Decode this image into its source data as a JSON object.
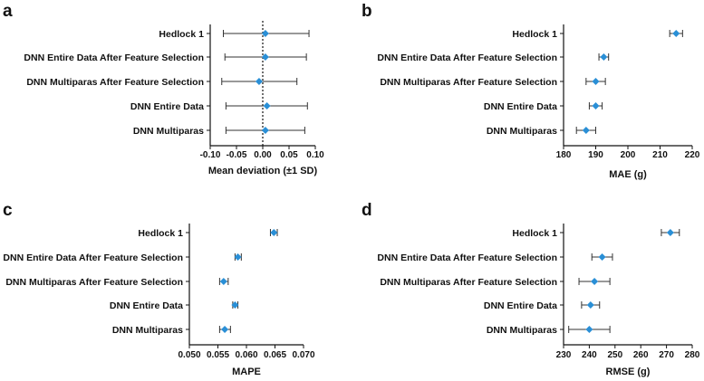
{
  "chart_data": [
    {
      "type": "scatter",
      "panel": "a",
      "categories": [
        "Hedlock 1",
        "DNN Entire Data After Feature Selection",
        "DNN Multiparas After Feature Selection",
        "DNN Entire Data",
        "DNN Multiparas"
      ],
      "values": [
        0.005,
        0.005,
        -0.007,
        0.008,
        0.005
      ],
      "lower": [
        -0.075,
        -0.072,
        -0.078,
        -0.07,
        -0.07
      ],
      "upper": [
        0.088,
        0.083,
        0.065,
        0.085,
        0.08
      ],
      "xlabel": "Mean deviation (±1 SD)",
      "xlim": [
        -0.1,
        0.1
      ],
      "xticks": [
        "-0.10",
        "-0.05",
        "0.00",
        "0.05",
        "0.10"
      ],
      "reference_line": 0,
      "color": "#2a8fd6"
    },
    {
      "type": "scatter",
      "panel": "b",
      "categories": [
        "Hedlock 1",
        "DNN Entire Data After Feature Selection",
        "DNN Multiparas After Feature Selection",
        "DNN Entire Data",
        "DNN Multiparas"
      ],
      "values": [
        215,
        192.5,
        190,
        190,
        187
      ],
      "lower": [
        213,
        191,
        187,
        188,
        184
      ],
      "upper": [
        217,
        194,
        193,
        192,
        190
      ],
      "xlabel": "MAE (g)",
      "xlim": [
        180,
        220
      ],
      "xticks": [
        "180",
        "190",
        "200",
        "210",
        "220"
      ],
      "color": "#2a8fd6"
    },
    {
      "type": "scatter",
      "panel": "c",
      "categories": [
        "Hedlock 1",
        "DNN Entire Data After Feature Selection",
        "DNN Multiparas After Feature Selection",
        "DNN Entire Data",
        "DNN Multiparas"
      ],
      "values": [
        0.0648,
        0.0585,
        0.056,
        0.058,
        0.0562
      ],
      "lower": [
        0.0642,
        0.058,
        0.0553,
        0.0576,
        0.0553
      ],
      "upper": [
        0.0654,
        0.0591,
        0.0568,
        0.0585,
        0.0572
      ],
      "xlabel": "MAPE",
      "xlim": [
        0.05,
        0.07
      ],
      "xticks": [
        "0.050",
        "0.055",
        "0.060",
        "0.065",
        "0.070"
      ],
      "color": "#2a8fd6"
    },
    {
      "type": "scatter",
      "panel": "d",
      "categories": [
        "Hedlock 1",
        "DNN Entire Data After Feature Selection",
        "DNN Multiparas After Feature Selection",
        "DNN Entire Data",
        "DNN Multiparas"
      ],
      "values": [
        271.5,
        245,
        242,
        240.5,
        240
      ],
      "lower": [
        268,
        241,
        236,
        237,
        232
      ],
      "upper": [
        275,
        249,
        248,
        244,
        248
      ],
      "xlabel": "RMSE (g)",
      "xlim": [
        230,
        280
      ],
      "xticks": [
        "230",
        "240",
        "250",
        "260",
        "270",
        "280"
      ],
      "color": "#2a8fd6"
    }
  ]
}
